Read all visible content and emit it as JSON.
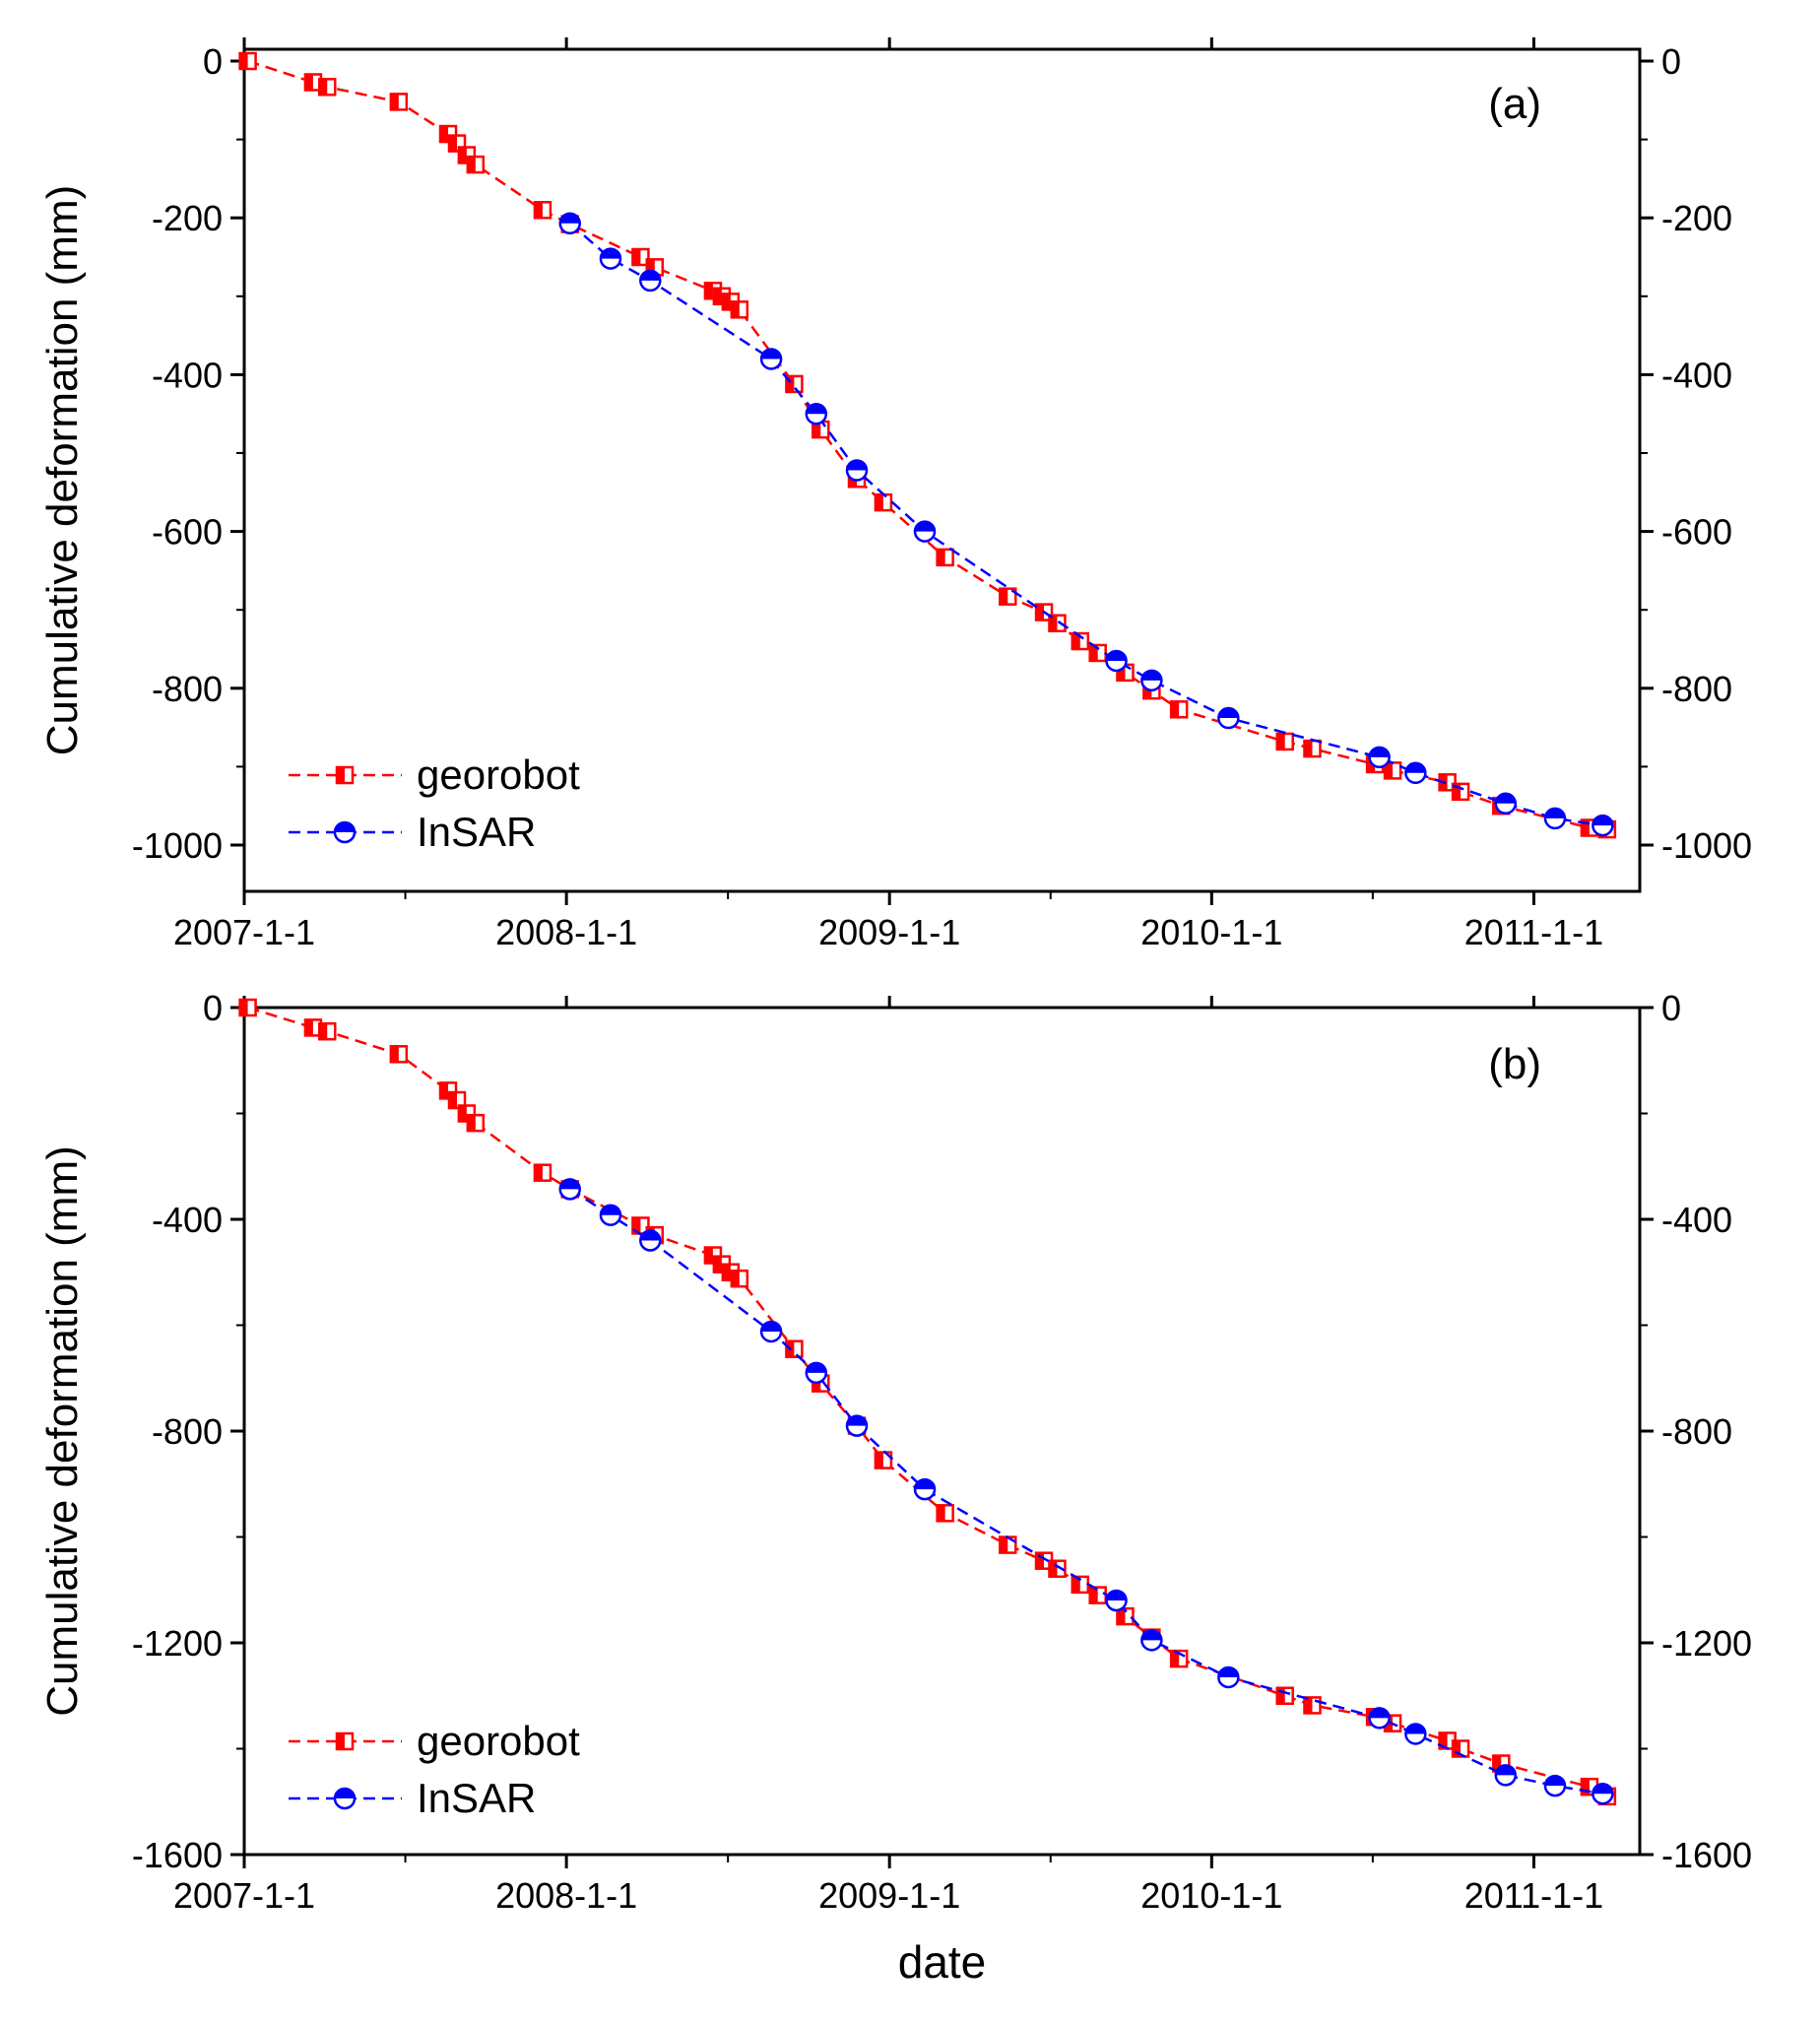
{
  "chart_data": [
    {
      "type": "line",
      "panel_label": "(a)",
      "xlabel": "",
      "ylabel": "Cumulative deformation (mm)",
      "x_ticks": [
        "2007-1-1",
        "2008-1-1",
        "2009-1-1",
        "2010-1-1",
        "2011-1-1"
      ],
      "y_ticks": [
        0,
        -200,
        -400,
        -600,
        -800,
        -1000
      ],
      "xlim": [
        "2007-01-01",
        "2011-05-01"
      ],
      "ylim": [
        -1050,
        0
      ],
      "legend": {
        "placement": "bottom-left",
        "entries": [
          "georobot",
          "InSAR"
        ]
      },
      "series": [
        {
          "name": "georobot",
          "color": "#ff0000",
          "line_style": "dashed",
          "marker": "half-filled-square",
          "points": [
            [
              "2007-01-05",
              0
            ],
            [
              "2007-03-20",
              -27
            ],
            [
              "2007-04-05",
              -33
            ],
            [
              "2007-06-25",
              -52
            ],
            [
              "2007-08-20",
              -93
            ],
            [
              "2007-08-30",
              -105
            ],
            [
              "2007-09-10",
              -120
            ],
            [
              "2007-09-20",
              -132
            ],
            [
              "2007-12-05",
              -190
            ],
            [
              "2008-01-05",
              -208
            ],
            [
              "2008-03-25",
              -250
            ],
            [
              "2008-04-10",
              -263
            ],
            [
              "2008-06-15",
              -293
            ],
            [
              "2008-06-25",
              -300
            ],
            [
              "2008-07-05",
              -307
            ],
            [
              "2008-07-15",
              -317
            ],
            [
              "2008-09-15",
              -412
            ],
            [
              "2008-10-15",
              -470
            ],
            [
              "2008-11-25",
              -533
            ],
            [
              "2008-12-25",
              -563
            ],
            [
              "2009-03-05",
              -633
            ],
            [
              "2009-05-15",
              -683
            ],
            [
              "2009-06-25",
              -703
            ],
            [
              "2009-07-10",
              -717
            ],
            [
              "2009-08-05",
              -740
            ],
            [
              "2009-08-25",
              -755
            ],
            [
              "2009-09-25",
              -780
            ],
            [
              "2009-10-25",
              -803
            ],
            [
              "2009-11-25",
              -827
            ],
            [
              "2010-03-25",
              -868
            ],
            [
              "2010-04-25",
              -877
            ],
            [
              "2010-07-05",
              -897
            ],
            [
              "2010-07-25",
              -905
            ],
            [
              "2010-09-25",
              -920
            ],
            [
              "2010-10-10",
              -932
            ],
            [
              "2010-11-25",
              -950
            ],
            [
              "2011-03-05",
              -978
            ],
            [
              "2011-03-25",
              -980
            ]
          ]
        },
        {
          "name": "InSAR",
          "color": "#0000ff",
          "line_style": "dashed",
          "marker": "half-filled-circle",
          "points": [
            [
              "2008-01-05",
              -207
            ],
            [
              "2008-02-20",
              -252
            ],
            [
              "2008-04-05",
              -280
            ],
            [
              "2008-08-20",
              -380
            ],
            [
              "2008-10-10",
              -450
            ],
            [
              "2008-11-25",
              -522
            ],
            [
              "2009-02-10",
              -600
            ],
            [
              "2009-09-15",
              -765
            ],
            [
              "2009-10-25",
              -790
            ],
            [
              "2010-01-20",
              -838
            ],
            [
              "2010-07-10",
              -888
            ],
            [
              "2010-08-20",
              -908
            ],
            [
              "2010-11-30",
              -947
            ],
            [
              "2011-01-25",
              -966
            ],
            [
              "2011-03-20",
              -975
            ]
          ]
        }
      ]
    },
    {
      "type": "line",
      "panel_label": "(b)",
      "xlabel": "date",
      "ylabel": "Cumulative deformation (mm)",
      "x_ticks": [
        "2007-1-1",
        "2008-1-1",
        "2009-1-1",
        "2010-1-1",
        "2011-1-1"
      ],
      "y_ticks": [
        0,
        -400,
        -800,
        -1200,
        -1600
      ],
      "xlim": [
        "2007-01-01",
        "2011-05-01"
      ],
      "ylim": [
        -1600,
        0
      ],
      "legend": {
        "placement": "bottom-left",
        "entries": [
          "georobot",
          "InSAR"
        ]
      },
      "series": [
        {
          "name": "georobot",
          "color": "#ff0000",
          "line_style": "dashed",
          "marker": "half-filled-square",
          "points": [
            [
              "2007-01-05",
              0
            ],
            [
              "2007-03-20",
              -38
            ],
            [
              "2007-04-05",
              -45
            ],
            [
              "2007-06-25",
              -88
            ],
            [
              "2007-08-20",
              -157
            ],
            [
              "2007-08-30",
              -175
            ],
            [
              "2007-09-10",
              -200
            ],
            [
              "2007-09-20",
              -218
            ],
            [
              "2007-12-05",
              -312
            ],
            [
              "2008-01-05",
              -343
            ],
            [
              "2008-03-25",
              -412
            ],
            [
              "2008-04-10",
              -430
            ],
            [
              "2008-06-15",
              -468
            ],
            [
              "2008-06-25",
              -485
            ],
            [
              "2008-07-05",
              -500
            ],
            [
              "2008-07-15",
              -512
            ],
            [
              "2008-09-15",
              -645
            ],
            [
              "2008-10-15",
              -710
            ],
            [
              "2008-11-25",
              -790
            ],
            [
              "2008-12-25",
              -855
            ],
            [
              "2009-03-05",
              -955
            ],
            [
              "2009-05-15",
              -1015
            ],
            [
              "2009-06-25",
              -1045
            ],
            [
              "2009-07-10",
              -1060
            ],
            [
              "2009-08-05",
              -1090
            ],
            [
              "2009-08-25",
              -1110
            ],
            [
              "2009-09-25",
              -1150
            ],
            [
              "2009-10-25",
              -1190
            ],
            [
              "2009-11-25",
              -1230
            ],
            [
              "2010-03-25",
              -1300
            ],
            [
              "2010-04-25",
              -1318
            ],
            [
              "2010-07-05",
              -1340
            ],
            [
              "2010-07-25",
              -1352
            ],
            [
              "2010-09-25",
              -1385
            ],
            [
              "2010-10-10",
              -1400
            ],
            [
              "2010-11-25",
              -1428
            ],
            [
              "2011-03-05",
              -1472
            ],
            [
              "2011-03-25",
              -1490
            ]
          ]
        },
        {
          "name": "InSAR",
          "color": "#0000ff",
          "line_style": "dashed",
          "marker": "half-filled-circle",
          "points": [
            [
              "2008-01-05",
              -343
            ],
            [
              "2008-02-20",
              -392
            ],
            [
              "2008-04-05",
              -440
            ],
            [
              "2008-08-20",
              -612
            ],
            [
              "2008-10-10",
              -690
            ],
            [
              "2008-11-25",
              -790
            ],
            [
              "2009-02-10",
              -910
            ],
            [
              "2009-09-15",
              -1120
            ],
            [
              "2009-10-25",
              -1195
            ],
            [
              "2010-01-20",
              -1265
            ],
            [
              "2010-07-10",
              -1342
            ],
            [
              "2010-08-20",
              -1372
            ],
            [
              "2010-11-30",
              -1450
            ],
            [
              "2011-01-25",
              -1470
            ],
            [
              "2011-03-20",
              -1485
            ]
          ]
        }
      ]
    }
  ]
}
